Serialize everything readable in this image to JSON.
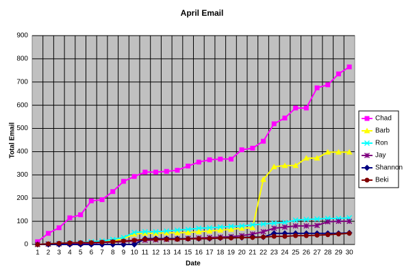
{
  "chart_data": {
    "type": "line",
    "title": "April Email",
    "x_label": "Date",
    "y_label": "Total Email",
    "categories": [
      "1",
      "2",
      "3",
      "4",
      "5",
      "6",
      "7",
      "8",
      "9",
      "10",
      "11",
      "12",
      "13",
      "14",
      "15",
      "16",
      "17",
      "18",
      "19",
      "20",
      "21",
      "22",
      "23",
      "24",
      "25",
      "26",
      "27",
      "28",
      "29",
      "30"
    ],
    "ylim": [
      0,
      900
    ],
    "yticks": [
      0,
      100,
      200,
      300,
      400,
      500,
      600,
      700,
      800,
      900
    ],
    "grid": true,
    "legend": "right",
    "series": [
      {
        "name": "Chad",
        "color": "#ff00ff",
        "marker": "square",
        "values": [
          12,
          48,
          72,
          115,
          128,
          188,
          193,
          228,
          272,
          293,
          312,
          312,
          315,
          320,
          338,
          355,
          365,
          368,
          368,
          408,
          415,
          445,
          520,
          545,
          588,
          588,
          675,
          688,
          735,
          765
        ]
      },
      {
        "name": "Barb",
        "color": "#ffff00",
        "marker": "triangle",
        "values": [
          0,
          2,
          3,
          5,
          5,
          8,
          10,
          15,
          25,
          45,
          48,
          48,
          50,
          50,
          52,
          55,
          58,
          62,
          65,
          70,
          72,
          280,
          335,
          340,
          340,
          372,
          372,
          398,
          398,
          398
        ]
      },
      {
        "name": "Ron",
        "color": "#00ffff",
        "marker": "cross",
        "values": [
          0,
          3,
          5,
          7,
          8,
          12,
          15,
          22,
          30,
          52,
          55,
          55,
          58,
          62,
          65,
          70,
          72,
          75,
          78,
          80,
          85,
          88,
          92,
          95,
          105,
          108,
          110,
          112,
          112,
          115
        ]
      },
      {
        "name": "Jay",
        "color": "#800080",
        "marker": "star",
        "values": [
          0,
          2,
          3,
          4,
          5,
          6,
          8,
          10,
          12,
          15,
          18,
          20,
          22,
          24,
          26,
          28,
          30,
          32,
          34,
          38,
          45,
          55,
          70,
          75,
          80,
          80,
          82,
          98,
          100,
          100
        ]
      },
      {
        "name": "Shannon",
        "color": "#000080",
        "marker": "diamond",
        "values": [
          0,
          0,
          0,
          0,
          0,
          0,
          0,
          0,
          0,
          0,
          25,
          25,
          25,
          25,
          25,
          25,
          25,
          28,
          30,
          30,
          32,
          32,
          48,
          48,
          48,
          48,
          48,
          48,
          48,
          50
        ]
      },
      {
        "name": "Beki",
        "color": "#800000",
        "marker": "circle",
        "values": [
          0,
          3,
          5,
          7,
          8,
          8,
          10,
          12,
          15,
          18,
          22,
          22,
          22,
          22,
          24,
          25,
          26,
          28,
          28,
          30,
          30,
          32,
          35,
          35,
          38,
          38,
          40,
          42,
          45,
          48
        ]
      }
    ]
  }
}
